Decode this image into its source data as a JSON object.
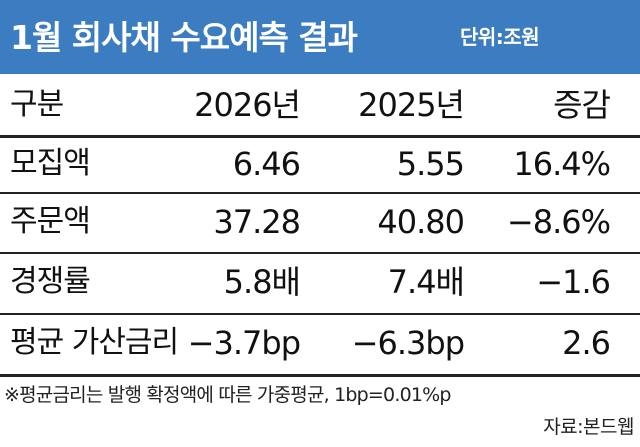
{
  "header": {
    "title": "1월 회사채 수요예측 결과",
    "unit": "단위:조원"
  },
  "table": {
    "columns": [
      "구분",
      "2026년",
      "2025년",
      "증감"
    ],
    "rows": [
      [
        "모집액",
        "6.46",
        "5.55",
        "16.4%"
      ],
      [
        "주문액",
        "37.28",
        "40.80",
        "−8.6%"
      ],
      [
        "경쟁률",
        "5.8배",
        "7.4배",
        "−1.6"
      ],
      [
        "평균 가산금리",
        "−3.7bp",
        "−6.3bp",
        "2.6"
      ]
    ]
  },
  "footnote": "※평균금리는 발행 확정액에 따른  가중평균, 1bp=0.01%p",
  "source": "자료:본드웹",
  "colors": {
    "header_bg": "#3b7dc0",
    "header_text": "#ffffff",
    "rule": "#222222"
  }
}
